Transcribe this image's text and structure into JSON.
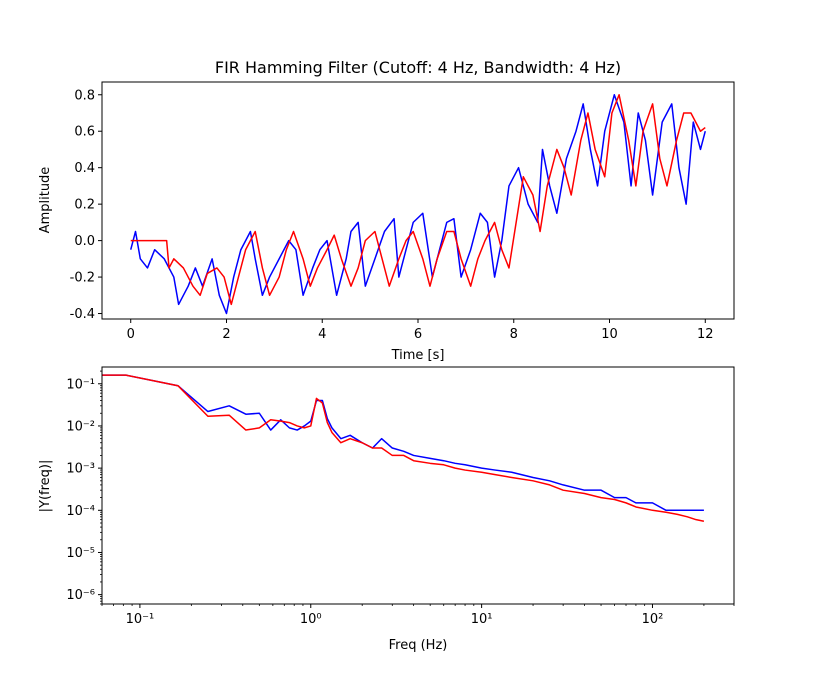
{
  "chart_data": [
    {
      "type": "line",
      "title": "FIR Hamming Filter (Cutoff: 4 Hz, Bandwidth: 4 Hz)",
      "xlabel": "Time [s]",
      "ylabel": "Amplitude",
      "xlim": [
        -0.6,
        12.6
      ],
      "ylim": [
        -0.43,
        0.87
      ],
      "xticks": [
        0,
        2,
        4,
        6,
        8,
        10,
        12
      ],
      "yticks": [
        -0.4,
        -0.2,
        0.0,
        0.2,
        0.4,
        0.6,
        0.8
      ],
      "grid": false,
      "series": [
        {
          "color": "#0000ff",
          "description": "noisy input signal",
          "x": [
            0,
            0.1,
            0.2,
            0.35,
            0.5,
            0.7,
            0.9,
            1.0,
            1.1,
            1.2,
            1.35,
            1.5,
            1.7,
            1.85,
            2.0,
            2.15,
            2.3,
            2.5,
            2.6,
            2.75,
            2.9,
            3.1,
            3.3,
            3.45,
            3.6,
            3.8,
            3.95,
            4.1,
            4.3,
            4.5,
            4.6,
            4.75,
            4.9,
            5.1,
            5.3,
            5.5,
            5.6,
            5.75,
            5.9,
            6.1,
            6.3,
            6.45,
            6.6,
            6.75,
            6.9,
            7.1,
            7.3,
            7.45,
            7.6,
            7.75,
            7.9,
            8.1,
            8.3,
            8.5,
            8.6,
            8.75,
            8.9,
            9.1,
            9.3,
            9.45,
            9.6,
            9.75,
            9.9,
            10.1,
            10.3,
            10.45,
            10.6,
            10.75,
            10.9,
            11.1,
            11.3,
            11.45,
            11.6,
            11.75,
            11.9,
            12.0
          ],
          "y": [
            -0.05,
            0.05,
            -0.1,
            -0.15,
            -0.05,
            -0.1,
            -0.2,
            -0.35,
            -0.3,
            -0.25,
            -0.15,
            -0.25,
            -0.1,
            -0.3,
            -0.4,
            -0.2,
            -0.05,
            0.05,
            -0.1,
            -0.3,
            -0.2,
            -0.1,
            0.0,
            -0.05,
            -0.3,
            -0.15,
            -0.05,
            0.0,
            -0.3,
            -0.1,
            0.05,
            0.1,
            -0.25,
            -0.1,
            0.05,
            0.12,
            -0.2,
            -0.05,
            0.1,
            0.15,
            -0.2,
            -0.05,
            0.1,
            0.12,
            -0.2,
            -0.05,
            0.15,
            0.1,
            -0.2,
            0.0,
            0.3,
            0.4,
            0.2,
            0.1,
            0.5,
            0.3,
            0.15,
            0.45,
            0.6,
            0.75,
            0.5,
            0.3,
            0.6,
            0.8,
            0.65,
            0.3,
            0.7,
            0.55,
            0.25,
            0.65,
            0.75,
            0.4,
            0.2,
            0.65,
            0.5,
            0.6
          ]
        },
        {
          "color": "#ff0000",
          "description": "filtered output",
          "x": [
            0,
            0.75,
            0.8,
            0.9,
            1.1,
            1.3,
            1.45,
            1.6,
            1.8,
            1.95,
            2.1,
            2.25,
            2.4,
            2.6,
            2.75,
            2.9,
            3.1,
            3.25,
            3.4,
            3.6,
            3.75,
            3.9,
            4.1,
            4.25,
            4.4,
            4.6,
            4.75,
            4.9,
            5.1,
            5.25,
            5.4,
            5.6,
            5.75,
            5.9,
            6.1,
            6.25,
            6.4,
            6.6,
            6.75,
            6.9,
            7.1,
            7.25,
            7.4,
            7.6,
            7.75,
            7.9,
            8.05,
            8.2,
            8.4,
            8.55,
            8.7,
            8.9,
            9.05,
            9.2,
            9.4,
            9.55,
            9.7,
            9.9,
            10.05,
            10.2,
            10.4,
            10.55,
            10.7,
            10.9,
            11.05,
            11.2,
            11.4,
            11.55,
            11.7,
            11.9,
            12.0
          ],
          "y": [
            0,
            0,
            -0.15,
            -0.1,
            -0.15,
            -0.25,
            -0.3,
            -0.18,
            -0.15,
            -0.2,
            -0.35,
            -0.2,
            -0.05,
            0.05,
            -0.15,
            -0.3,
            -0.2,
            -0.05,
            0.05,
            -0.1,
            -0.25,
            -0.15,
            -0.05,
            0.03,
            -0.1,
            -0.25,
            -0.15,
            0.0,
            0.05,
            -0.1,
            -0.25,
            -0.1,
            0.0,
            0.05,
            -0.1,
            -0.25,
            -0.1,
            0.05,
            0.05,
            -0.1,
            -0.25,
            -0.1,
            0.0,
            0.1,
            -0.05,
            -0.15,
            0.1,
            0.35,
            0.25,
            0.05,
            0.3,
            0.5,
            0.4,
            0.25,
            0.55,
            0.7,
            0.5,
            0.35,
            0.7,
            0.8,
            0.55,
            0.3,
            0.6,
            0.75,
            0.45,
            0.3,
            0.55,
            0.7,
            0.7,
            0.6,
            0.62
          ]
        }
      ]
    },
    {
      "type": "line",
      "xlabel": "Freq (Hz)",
      "ylabel": "|Y(freq)|",
      "xscale": "log",
      "yscale": "log",
      "xlim": [
        0.06,
        300
      ],
      "ylim": [
        6e-07,
        0.25
      ],
      "xticks": [
        0.1,
        1,
        10,
        100
      ],
      "xtick_labels": [
        "10⁻¹",
        "10⁰",
        "10¹",
        "10²"
      ],
      "yticks": [
        1e-06,
        1e-05,
        0.0001,
        0.001,
        0.01,
        0.1
      ],
      "ytick_labels": [
        "10⁻⁶",
        "10⁻⁵",
        "10⁻⁴",
        "10⁻³",
        "10⁻²",
        "10⁻¹"
      ],
      "grid": false,
      "series": [
        {
          "color": "#0000ff",
          "description": "spectrum of input",
          "x": [
            0.06,
            0.083,
            0.167,
            0.25,
            0.333,
            0.417,
            0.5,
            0.583,
            0.667,
            0.75,
            0.833,
            0.917,
            1.0,
            1.08,
            1.17,
            1.25,
            1.33,
            1.5,
            1.7,
            2.0,
            2.3,
            2.6,
            3.0,
            3.5,
            4.0,
            5.0,
            6.0,
            7.0,
            8.0,
            10.0,
            12.0,
            15.0,
            20.0,
            25.0,
            30.0,
            40.0,
            50.0,
            60.0,
            70.0,
            80.0,
            100.0,
            120.0,
            140.0,
            160.0,
            180.0,
            200.0
          ],
          "y": [
            0.16,
            0.16,
            0.09,
            0.022,
            0.03,
            0.019,
            0.02,
            0.008,
            0.014,
            0.009,
            0.008,
            0.01,
            0.013,
            0.04,
            0.04,
            0.015,
            0.009,
            0.005,
            0.006,
            0.004,
            0.003,
            0.005,
            0.003,
            0.0025,
            0.002,
            0.0017,
            0.0015,
            0.0013,
            0.0012,
            0.001,
            0.0009,
            0.0008,
            0.0006,
            0.0005,
            0.0004,
            0.0003,
            0.0003,
            0.0002,
            0.0002,
            0.00015,
            0.00015,
            0.0001,
            0.0001,
            0.0001,
            0.0001,
            0.0001
          ]
        },
        {
          "color": "#ff0000",
          "description": "spectrum of filtered output",
          "x": [
            0.06,
            0.083,
            0.167,
            0.25,
            0.333,
            0.417,
            0.5,
            0.583,
            0.667,
            0.75,
            0.833,
            0.917,
            1.0,
            1.08,
            1.17,
            1.25,
            1.33,
            1.5,
            1.7,
            2.0,
            2.3,
            2.6,
            3.0,
            3.5,
            4.0,
            5.0,
            6.0,
            7.0,
            8.0,
            10.0,
            12.0,
            15.0,
            20.0,
            25.0,
            30.0,
            40.0,
            50.0,
            60.0,
            70.0,
            80.0,
            100.0,
            120.0,
            140.0,
            160.0,
            180.0,
            200.0
          ],
          "y": [
            0.16,
            0.16,
            0.09,
            0.017,
            0.018,
            0.008,
            0.009,
            0.014,
            0.013,
            0.012,
            0.01,
            0.009,
            0.01,
            0.045,
            0.035,
            0.012,
            0.007,
            0.004,
            0.005,
            0.004,
            0.003,
            0.003,
            0.002,
            0.002,
            0.0015,
            0.0013,
            0.0012,
            0.001,
            0.0009,
            0.0008,
            0.0007,
            0.0006,
            0.0005,
            0.0004,
            0.0003,
            0.00025,
            0.0002,
            0.00018,
            0.00015,
            0.00012,
            0.0001,
            9e-05,
            8e-05,
            7e-05,
            6e-05,
            5.5e-05
          ]
        }
      ]
    }
  ]
}
